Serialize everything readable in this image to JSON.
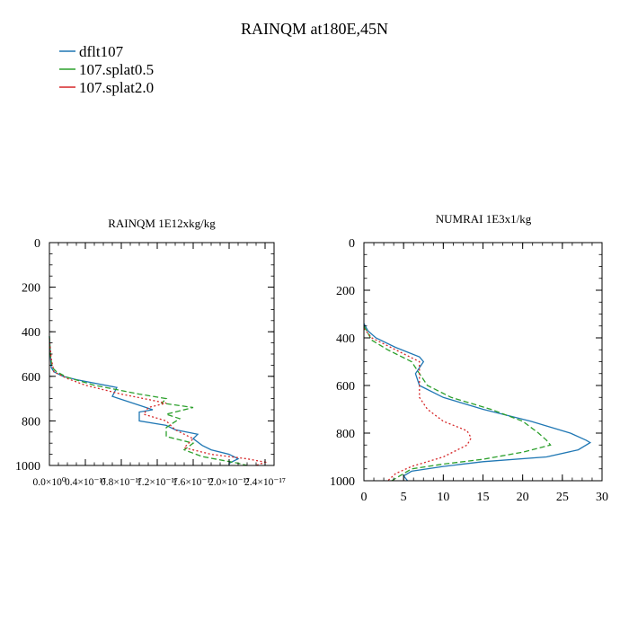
{
  "figure": {
    "title": "RAINQM at180E,45N"
  },
  "legend": [
    {
      "label": "dflt107",
      "color": "#1f77b4",
      "dash": "solid"
    },
    {
      "label": "107.splat0.5",
      "color": "#2ca02c",
      "dash": "dashed"
    },
    {
      "label": "107.splat2.0",
      "color": "#d62728",
      "dash": "dotted"
    }
  ],
  "chart_data": [
    {
      "type": "line",
      "title": "RAINQM  1E12xkg/kg",
      "xlim": [
        0,
        2.5e-17
      ],
      "ylim": [
        1000,
        0
      ],
      "yticks": [
        "0",
        "200",
        "400",
        "600",
        "800",
        "1000"
      ],
      "xticks": [
        "0.0×10⁰",
        "0.4×10⁻¹⁷",
        "0.8×10⁻¹⁷",
        "1.2×10⁻¹⁷",
        "1.6×10⁻¹⁷",
        "2.0×10⁻¹⁷",
        "2.4×10⁻¹⁷"
      ],
      "series": [
        {
          "name": "dflt107",
          "color": "#1f77b4",
          "dash": "solid",
          "points": [
            [
              0,
              420
            ],
            [
              1e-19,
              500
            ],
            [
              2e-19,
              560
            ],
            [
              5e-19,
              580
            ],
            [
              1.5e-18,
              600
            ],
            [
              3e-18,
              615
            ],
            [
              7.5e-18,
              650
            ],
            [
              7e-18,
              690
            ],
            [
              1e-17,
              730
            ],
            [
              1.15e-17,
              750
            ],
            [
              1e-17,
              760
            ],
            [
              1e-17,
              800
            ],
            [
              1.3e-17,
              820
            ],
            [
              1.4e-17,
              840
            ],
            [
              1.65e-17,
              860
            ],
            [
              1.6e-17,
              880
            ],
            [
              1.7e-17,
              910
            ],
            [
              1.8e-17,
              930
            ],
            [
              2e-17,
              950
            ],
            [
              2.1e-17,
              970
            ],
            [
              2e-17,
              990
            ],
            [
              2e-17,
              1000
            ]
          ]
        },
        {
          "name": "107.splat0.5",
          "color": "#2ca02c",
          "dash": "dashed",
          "points": [
            [
              0,
              420
            ],
            [
              1e-19,
              500
            ],
            [
              3e-19,
              560
            ],
            [
              8e-19,
              580
            ],
            [
              2e-18,
              605
            ],
            [
              5e-18,
              640
            ],
            [
              1e-17,
              680
            ],
            [
              1.3e-17,
              700
            ],
            [
              1.25e-17,
              720
            ],
            [
              1.6e-17,
              740
            ],
            [
              1.3e-17,
              770
            ],
            [
              1.45e-17,
              790
            ],
            [
              1.3e-17,
              830
            ],
            [
              1.3e-17,
              870
            ],
            [
              1.6e-17,
              900
            ],
            [
              1.5e-17,
              930
            ],
            [
              1.7e-17,
              960
            ],
            [
              2.1e-17,
              990
            ],
            [
              2.2e-17,
              1000
            ]
          ]
        },
        {
          "name": "107.splat2.0",
          "color": "#d62728",
          "dash": "dotted",
          "points": [
            [
              0,
              430
            ],
            [
              2e-19,
              520
            ],
            [
              5e-19,
              580
            ],
            [
              2e-18,
              610
            ],
            [
              4e-18,
              640
            ],
            [
              8e-18,
              680
            ],
            [
              1.3e-17,
              720
            ],
            [
              1.1e-17,
              740
            ],
            [
              1.05e-17,
              770
            ],
            [
              1.3e-17,
              800
            ],
            [
              1.4e-17,
              840
            ],
            [
              1.6e-17,
              880
            ],
            [
              1.5e-17,
              920
            ],
            [
              1.8e-17,
              950
            ],
            [
              2.2e-17,
              970
            ],
            [
              2.4e-17,
              985
            ],
            [
              2.3e-17,
              1000
            ]
          ]
        }
      ]
    },
    {
      "type": "line",
      "title": "NUMRAI  1E3x1/kg",
      "xlim": [
        0,
        30
      ],
      "ylim": [
        1000,
        0
      ],
      "yticks": [
        "0",
        "200",
        "400",
        "600",
        "800",
        "1000"
      ],
      "xticks": [
        "0",
        "5",
        "10",
        "15",
        "20",
        "25",
        "30"
      ],
      "series": [
        {
          "name": "dflt107",
          "color": "#1f77b4",
          "dash": "solid",
          "points": [
            [
              0,
              340
            ],
            [
              0.5,
              370
            ],
            [
              1.5,
              400
            ],
            [
              4,
              440
            ],
            [
              7,
              480
            ],
            [
              7.5,
              500
            ],
            [
              6.5,
              550
            ],
            [
              7,
              600
            ],
            [
              10,
              650
            ],
            [
              15,
              700
            ],
            [
              21,
              750
            ],
            [
              26,
              800
            ],
            [
              28,
              830
            ],
            [
              28.5,
              840
            ],
            [
              27,
              870
            ],
            [
              23,
              900
            ],
            [
              15,
              920
            ],
            [
              10,
              940
            ],
            [
              6,
              960
            ],
            [
              5,
              980
            ],
            [
              5.5,
              1000
            ]
          ]
        },
        {
          "name": "107.splat0.5",
          "color": "#2ca02c",
          "dash": "dashed",
          "points": [
            [
              0,
              350
            ],
            [
              0.5,
              380
            ],
            [
              1,
              410
            ],
            [
              3,
              450
            ],
            [
              6,
              500
            ],
            [
              7,
              550
            ],
            [
              8,
              600
            ],
            [
              11,
              650
            ],
            [
              16,
              700
            ],
            [
              20,
              750
            ],
            [
              22,
              800
            ],
            [
              23,
              830
            ],
            [
              23.5,
              850
            ],
            [
              20,
              880
            ],
            [
              15,
              910
            ],
            [
              10,
              930
            ],
            [
              6,
              950
            ],
            [
              4.5,
              980
            ],
            [
              3.5,
              1000
            ]
          ]
        },
        {
          "name": "107.splat2.0",
          "color": "#d62728",
          "dash": "dotted",
          "points": [
            [
              0,
              360
            ],
            [
              1,
              400
            ],
            [
              4,
              450
            ],
            [
              7,
              500
            ],
            [
              7,
              550
            ],
            [
              7,
              600
            ],
            [
              7,
              650
            ],
            [
              8,
              700
            ],
            [
              10,
              750
            ],
            [
              13,
              790
            ],
            [
              13.5,
              820
            ],
            [
              13,
              850
            ],
            [
              10,
              900
            ],
            [
              6,
              940
            ],
            [
              4,
              970
            ],
            [
              3,
              1000
            ]
          ]
        }
      ]
    }
  ]
}
